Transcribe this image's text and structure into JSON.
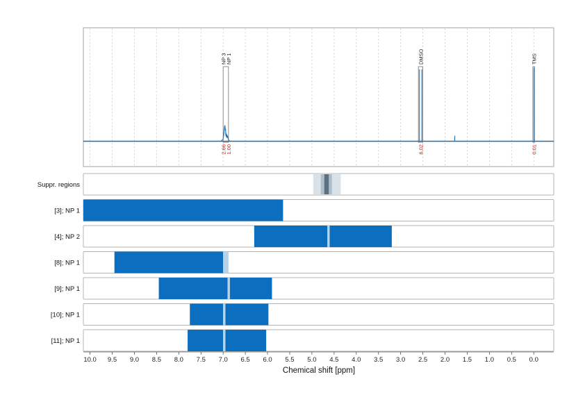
{
  "chart_data": {
    "type": "nmr-spectrum-with-range-panels",
    "xlabel": "Chemical shift [ppm]",
    "xlim": [
      10.15,
      -0.45
    ],
    "x_ticks": [
      "10.0",
      "9.5",
      "9.0",
      "8.5",
      "8.0",
      "7.5",
      "7.0",
      "6.5",
      "6.0",
      "5.5",
      "5.0",
      "4.5",
      "4.0",
      "3.5",
      "3.0",
      "2.5",
      "2.0",
      "1.5",
      "1.0",
      "0.5",
      "0.0"
    ],
    "colors": {
      "spectrum": "#1f6fae",
      "bar": "#0b6ebf",
      "overlap": "#b8d2e6",
      "suppr_light": "#d9e1e9",
      "suppr_mid": "#aebdca",
      "suppr_dark": "#5d7080",
      "integral": "#dd1111"
    },
    "spectrum": {
      "peaks": [
        {
          "labels": [
            "NP 3",
            "NP 1"
          ],
          "range": [
            7.0,
            6.88
          ],
          "integrals": [
            "2.66",
            "1.00"
          ]
        },
        {
          "labels": [
            "DMSO"
          ],
          "range": [
            2.6,
            2.5
          ],
          "integrals": [
            "6.02"
          ]
        },
        {
          "labels": [
            "TMS"
          ],
          "range": [
            0.02,
            -0.02
          ],
          "integrals": [
            "0.01"
          ]
        }
      ]
    },
    "suppression": {
      "label": "Suppr. regions",
      "outer": [
        4.97,
        4.35
      ],
      "middle": [
        4.8,
        4.55
      ],
      "inner": [
        4.72,
        4.62
      ]
    },
    "rows": [
      {
        "label": "[3]; NP 1",
        "segments": [
          [
            10.15,
            5.65
          ]
        ],
        "overlap": []
      },
      {
        "label": "[4]; NP 2",
        "segments": [
          [
            6.3,
            4.65
          ],
          [
            4.6,
            3.2
          ]
        ],
        "overlap": [
          [
            4.65,
            4.6
          ]
        ]
      },
      {
        "label": "[8]; NP 1",
        "segments": [
          [
            9.45,
            7.0
          ]
        ],
        "overlap": [
          [
            7.0,
            6.88
          ]
        ]
      },
      {
        "label": "[9]; NP 1",
        "segments": [
          [
            8.45,
            6.9
          ],
          [
            6.85,
            5.9
          ]
        ],
        "overlap": [
          [
            6.9,
            6.85
          ]
        ]
      },
      {
        "label": "[10]; NP 1",
        "segments": [
          [
            7.75,
            7.0
          ],
          [
            6.95,
            5.98
          ]
        ],
        "overlap": [
          [
            7.0,
            6.95
          ]
        ]
      },
      {
        "label": "[11]; NP 1",
        "segments": [
          [
            7.8,
            7.0
          ],
          [
            6.95,
            6.03
          ]
        ],
        "overlap": [
          [
            7.0,
            6.95
          ]
        ]
      }
    ]
  }
}
